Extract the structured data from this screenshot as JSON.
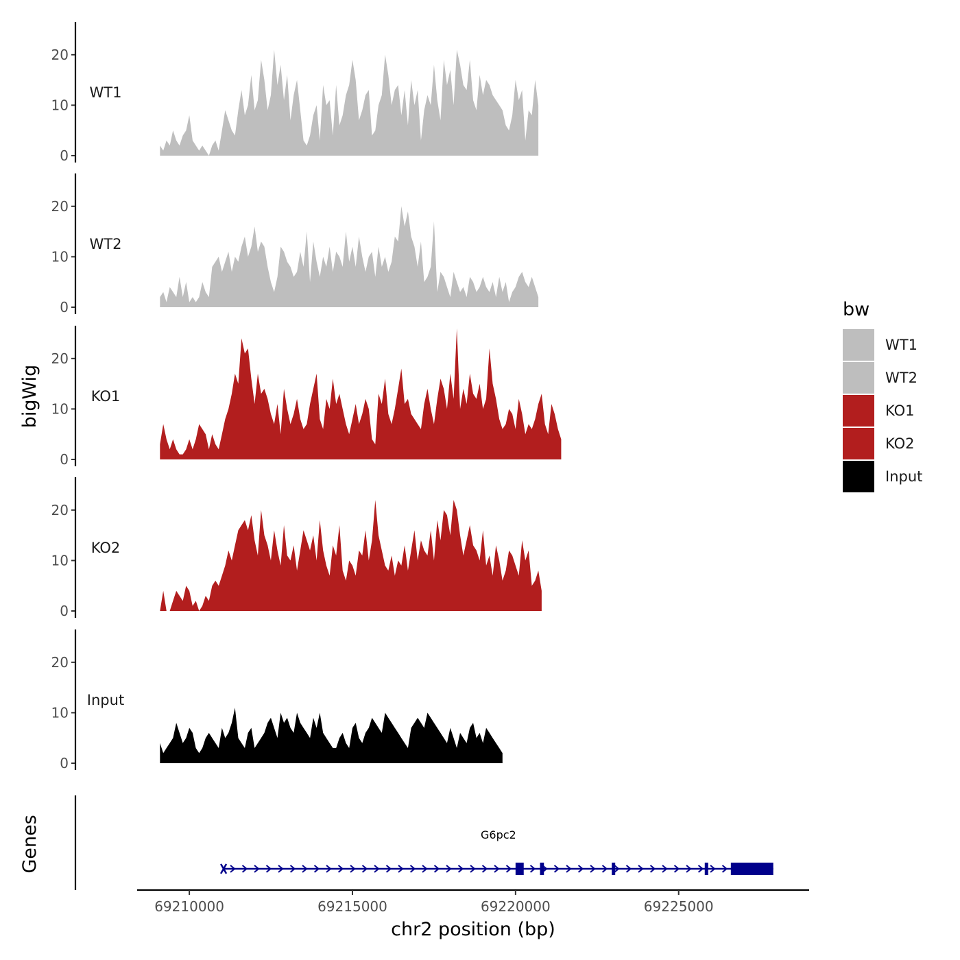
{
  "chart_data": {
    "type": "area",
    "ylabel": "bigWig",
    "xlabel": "chr2 position (bp)",
    "genes_label": "Genes",
    "xlim": [
      69208400,
      69229000
    ],
    "ylim": [
      0,
      26.5
    ],
    "xticks": [
      {
        "value": 69210000,
        "label": "69210000"
      },
      {
        "value": 69215000,
        "label": "69215000"
      },
      {
        "value": 69220000,
        "label": "69220000"
      },
      {
        "value": 69225000,
        "label": "69225000"
      }
    ],
    "yticks": [
      {
        "value": 0,
        "label": "0"
      },
      {
        "value": 10,
        "label": "10"
      },
      {
        "value": 20,
        "label": "20"
      }
    ],
    "x_start": 69209100,
    "x_step": 100,
    "series": [
      {
        "name": "WT1",
        "color": "#bebebe",
        "values": [
          2,
          1,
          3,
          2,
          5,
          3,
          2,
          4,
          5,
          8,
          3,
          2,
          1,
          2,
          1,
          0,
          2,
          3,
          1,
          5,
          9,
          7,
          5,
          4,
          9,
          13,
          8,
          10,
          16,
          9,
          11,
          19,
          15,
          9,
          12,
          21,
          14,
          18,
          11,
          16,
          7,
          12,
          15,
          9,
          3,
          2,
          4,
          8,
          10,
          3,
          14,
          10,
          11,
          4,
          14,
          6,
          8,
          12,
          14,
          19,
          15,
          7,
          9,
          12,
          13,
          4,
          5,
          10,
          12,
          20,
          16,
          10,
          13,
          14,
          8,
          13,
          6,
          15,
          10,
          13,
          3,
          9,
          12,
          10,
          18,
          11,
          7,
          19,
          14,
          17,
          10,
          21,
          18,
          14,
          13,
          19,
          11,
          9,
          16,
          12,
          15,
          14,
          12,
          11,
          10,
          9,
          6,
          5,
          8,
          15,
          11,
          13,
          3,
          9,
          8,
          15,
          10
        ]
      },
      {
        "name": "WT2",
        "color": "#bebebe",
        "values": [
          2,
          3,
          1,
          4,
          3,
          2,
          6,
          2,
          5,
          1,
          2,
          1,
          2,
          5,
          3,
          2,
          8,
          9,
          10,
          7,
          9,
          11,
          7,
          10,
          9,
          12,
          14,
          10,
          12,
          16,
          11,
          13,
          12,
          8,
          5,
          3,
          6,
          12,
          11,
          9,
          8,
          6,
          7,
          11,
          8,
          15,
          5,
          13,
          9,
          6,
          10,
          8,
          12,
          7,
          11,
          10,
          8,
          15,
          9,
          12,
          8,
          14,
          10,
          7,
          10,
          11,
          6,
          12,
          8,
          10,
          7,
          9,
          14,
          13,
          20,
          16,
          19,
          14,
          12,
          8,
          13,
          5,
          6,
          8,
          17,
          3,
          7,
          6,
          4,
          2,
          7,
          5,
          3,
          4,
          2,
          6,
          5,
          3,
          4,
          6,
          4,
          3,
          5,
          2,
          6,
          3,
          5,
          1,
          3,
          4,
          6,
          7,
          5,
          4,
          6,
          4,
          2
        ]
      },
      {
        "name": "KO1",
        "color": "#b21e1e",
        "values": [
          3,
          7,
          4,
          2,
          4,
          2,
          1,
          1,
          2,
          4,
          2,
          4,
          7,
          6,
          5,
          2,
          5,
          3,
          2,
          5,
          8,
          10,
          13,
          17,
          15,
          24,
          21,
          22,
          16,
          11,
          17,
          13,
          14,
          12,
          9,
          7,
          11,
          5,
          14,
          10,
          7,
          9,
          12,
          8,
          6,
          7,
          11,
          14,
          17,
          8,
          6,
          12,
          10,
          16,
          11,
          13,
          10,
          7,
          5,
          8,
          11,
          7,
          9,
          12,
          10,
          4,
          3,
          13,
          11,
          16,
          9,
          7,
          10,
          14,
          18,
          11,
          12,
          9,
          8,
          7,
          6,
          11,
          14,
          10,
          7,
          12,
          16,
          14,
          10,
          17,
          12,
          26,
          10,
          14,
          11,
          17,
          13,
          12,
          15,
          10,
          12,
          22,
          15,
          12,
          8,
          6,
          7,
          10,
          9,
          6,
          12,
          9,
          5,
          7,
          6,
          8,
          11,
          13,
          7,
          5,
          11,
          9,
          6,
          4
        ]
      },
      {
        "name": "KO2",
        "color": "#b21e1e",
        "values": [
          0,
          4,
          0,
          0,
          2,
          4,
          3,
          2,
          5,
          4,
          1,
          2,
          0,
          1,
          3,
          2,
          5,
          6,
          5,
          7,
          9,
          12,
          10,
          13,
          16,
          17,
          18,
          16,
          19,
          14,
          11,
          20,
          15,
          13,
          10,
          16,
          12,
          9,
          17,
          11,
          10,
          13,
          8,
          12,
          16,
          14,
          12,
          15,
          10,
          18,
          12,
          9,
          7,
          13,
          11,
          17,
          8,
          6,
          10,
          9,
          7,
          12,
          11,
          16,
          10,
          14,
          22,
          15,
          12,
          9,
          8,
          11,
          7,
          10,
          9,
          13,
          8,
          12,
          16,
          10,
          14,
          12,
          11,
          16,
          10,
          18,
          14,
          20,
          19,
          15,
          22,
          20,
          15,
          11,
          14,
          17,
          13,
          12,
          10,
          16,
          9,
          11,
          7,
          13,
          10,
          6,
          8,
          12,
          11,
          9,
          7,
          14,
          10,
          12,
          5,
          6,
          8,
          4
        ]
      },
      {
        "name": "Input",
        "color": "#000000",
        "values": [
          4,
          2,
          3,
          4,
          5,
          8,
          6,
          4,
          5,
          7,
          6,
          3,
          2,
          3,
          5,
          6,
          5,
          4,
          3,
          7,
          5,
          6,
          8,
          11,
          5,
          4,
          3,
          6,
          7,
          3,
          4,
          5,
          6,
          8,
          9,
          7,
          5,
          10,
          8,
          9,
          7,
          6,
          10,
          8,
          7,
          6,
          5,
          9,
          7,
          10,
          6,
          5,
          4,
          3,
          3,
          5,
          6,
          4,
          3,
          7,
          8,
          5,
          4,
          6,
          7,
          9,
          8,
          7,
          6,
          10,
          9,
          8,
          7,
          6,
          5,
          4,
          3,
          7,
          8,
          9,
          8,
          7,
          10,
          9,
          8,
          7,
          6,
          5,
          4,
          7,
          5,
          3,
          6,
          5,
          4,
          7,
          8,
          5,
          6,
          4,
          7,
          6,
          5,
          4,
          3,
          2
        ]
      }
    ],
    "genes": [
      {
        "name": "G6pc2",
        "start": 69211050,
        "end": 69227900,
        "strand": "+",
        "exons": [
          [
            69220000,
            69220250
          ],
          [
            69220750,
            69220870
          ],
          [
            69222950,
            69223050
          ],
          [
            69225800,
            69225900
          ],
          [
            69226600,
            69227900
          ]
        ]
      }
    ],
    "legend": {
      "title": "bw",
      "entries": [
        {
          "label": "WT1",
          "color": "#bebebe"
        },
        {
          "label": "WT2",
          "color": "#bebebe"
        },
        {
          "label": "KO1",
          "color": "#b21e1e"
        },
        {
          "label": "KO2",
          "color": "#b21e1e"
        },
        {
          "label": "Input",
          "color": "#000000"
        }
      ]
    },
    "gene_color": "#00008b"
  }
}
